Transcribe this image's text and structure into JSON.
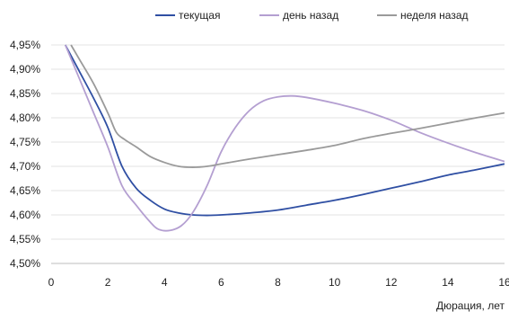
{
  "chart_data": {
    "type": "line",
    "title": "",
    "xlabel": "Дюрация, лет",
    "ylabel": "",
    "xlim": [
      0,
      16
    ],
    "ylim": [
      4.5,
      4.95
    ],
    "x_ticks": [
      "0",
      "2",
      "4",
      "6",
      "8",
      "10",
      "12",
      "14",
      "16"
    ],
    "y_ticks": [
      "4,50%",
      "4,55%",
      "4,60%",
      "4,65%",
      "4,70%",
      "4,75%",
      "4,80%",
      "4,85%",
      "4,90%",
      "4,95%"
    ],
    "grid": "horizontal",
    "legend_position": "top",
    "series": [
      {
        "name": "текущая",
        "color": "#2f4fa3",
        "points": [
          [
            0.5,
            4.95
          ],
          [
            1,
            4.895
          ],
          [
            1.5,
            4.84
          ],
          [
            2,
            4.78
          ],
          [
            2.5,
            4.7
          ],
          [
            3,
            4.655
          ],
          [
            3.5,
            4.63
          ],
          [
            4,
            4.612
          ],
          [
            4.5,
            4.604
          ],
          [
            5,
            4.6
          ],
          [
            5.5,
            4.599
          ],
          [
            6,
            4.6
          ],
          [
            7,
            4.604
          ],
          [
            8,
            4.61
          ],
          [
            9,
            4.62
          ],
          [
            10,
            4.63
          ],
          [
            11,
            4.642
          ],
          [
            12,
            4.655
          ],
          [
            13,
            4.668
          ],
          [
            14,
            4.682
          ],
          [
            15,
            4.693
          ],
          [
            16,
            4.705
          ]
        ]
      },
      {
        "name": "день назад",
        "color": "#b49fd1",
        "points": [
          [
            0.5,
            4.95
          ],
          [
            1,
            4.88
          ],
          [
            1.5,
            4.81
          ],
          [
            2,
            4.74
          ],
          [
            2.5,
            4.66
          ],
          [
            3,
            4.62
          ],
          [
            3.5,
            4.585
          ],
          [
            3.8,
            4.57
          ],
          [
            4.2,
            4.568
          ],
          [
            4.6,
            4.578
          ],
          [
            5,
            4.605
          ],
          [
            5.5,
            4.66
          ],
          [
            6,
            4.73
          ],
          [
            6.5,
            4.78
          ],
          [
            7,
            4.815
          ],
          [
            7.5,
            4.835
          ],
          [
            8,
            4.843
          ],
          [
            8.5,
            4.845
          ],
          [
            9,
            4.842
          ],
          [
            10,
            4.83
          ],
          [
            11,
            4.815
          ],
          [
            12,
            4.795
          ],
          [
            13,
            4.77
          ],
          [
            14,
            4.748
          ],
          [
            15,
            4.728
          ],
          [
            16,
            4.71
          ]
        ]
      },
      {
        "name": "неделя назад",
        "color": "#9a9a9a",
        "points": [
          [
            0.7,
            4.95
          ],
          [
            1,
            4.92
          ],
          [
            1.5,
            4.87
          ],
          [
            2,
            4.81
          ],
          [
            2.3,
            4.77
          ],
          [
            2.6,
            4.755
          ],
          [
            3,
            4.74
          ],
          [
            3.5,
            4.72
          ],
          [
            4,
            4.708
          ],
          [
            4.5,
            4.7
          ],
          [
            5,
            4.698
          ],
          [
            5.5,
            4.7
          ],
          [
            6,
            4.705
          ],
          [
            7,
            4.715
          ],
          [
            8,
            4.724
          ],
          [
            9,
            4.733
          ],
          [
            10,
            4.743
          ],
          [
            11,
            4.757
          ],
          [
            12,
            4.768
          ],
          [
            13,
            4.778
          ],
          [
            14,
            4.789
          ],
          [
            15,
            4.8
          ],
          [
            16,
            4.81
          ]
        ]
      }
    ]
  }
}
